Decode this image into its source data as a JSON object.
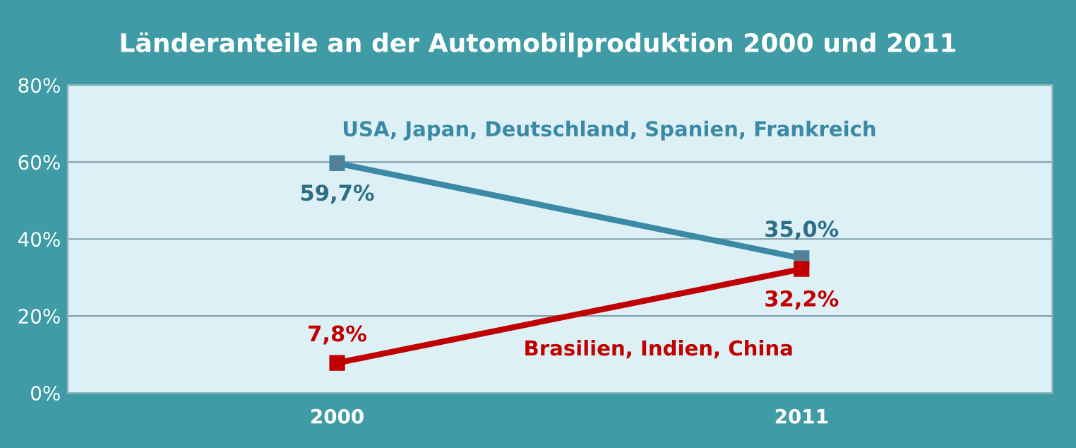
{
  "chart_data": {
    "type": "line",
    "title": "Länderanteile an der Automobilproduktion 2000 und 2011",
    "categories": [
      "2000",
      "2011"
    ],
    "series": [
      {
        "name": "USA, Japan, Deutschland, Spanien, Frankreich",
        "color": "#3a8aa6",
        "values": [
          59.7,
          35.0
        ],
        "value_labels": [
          "59,7%",
          "35,0%"
        ]
      },
      {
        "name": "Brasilien, Indien, China",
        "color": "#c00000",
        "values": [
          7.8,
          32.2
        ],
        "value_labels": [
          "7,8%",
          "32,2%"
        ]
      }
    ],
    "ylim": [
      0,
      80
    ],
    "yticks": [
      {
        "value": 0,
        "label": "0%"
      },
      {
        "value": 20,
        "label": "20%"
      },
      {
        "value": 40,
        "label": "40%"
      },
      {
        "value": 60,
        "label": "60%"
      },
      {
        "value": 80,
        "label": "80%"
      }
    ],
    "grid": "y",
    "legend": false,
    "marker": "square",
    "line_style": "solid"
  }
}
